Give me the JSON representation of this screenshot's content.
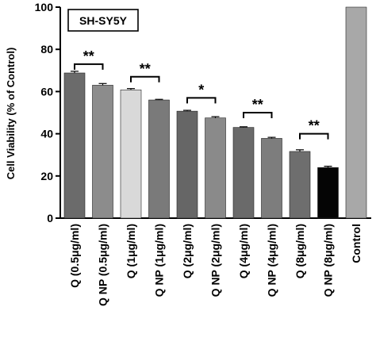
{
  "chart_data": {
    "type": "bar",
    "title": "SH-SY5Y",
    "ylabel": "Cell Viability (% of Control)",
    "xlabel": "",
    "ylim": [
      0,
      100
    ],
    "yticks": [
      0,
      20,
      40,
      60,
      80,
      100
    ],
    "categories": [
      "Q (0.5μg/ml)",
      "Q NP (0.5μg/ml)",
      "Q (1μg/ml)",
      "Q NP (1μg/ml)",
      "Q (2μg/ml)",
      "Q NP (2μg/ml)",
      "Q (4μg/ml)",
      "Q NP (4μg/ml)",
      "Q (8μg/ml)",
      "Q NP (8μg/ml)",
      "Control"
    ],
    "values": [
      68.8,
      63.0,
      60.8,
      56.0,
      50.7,
      47.5,
      43.0,
      37.8,
      31.6,
      24.0,
      100
    ],
    "errors": [
      0.8,
      0.8,
      0.6,
      0.3,
      0.4,
      0.6,
      0.3,
      0.5,
      0.8,
      0.6,
      0
    ],
    "colors": [
      "#6b6b6b",
      "#8c8c8c",
      "#d9d9d9",
      "#7a7a7a",
      "#666666",
      "#8a8a8a",
      "#6a6a6a",
      "#7d7d7d",
      "#6e6e6e",
      "#050505",
      "#a8a8a8"
    ],
    "annotations": [
      {
        "pair": [
          0,
          1
        ],
        "y": 73,
        "label": "**"
      },
      {
        "pair": [
          2,
          3
        ],
        "y": 67,
        "label": "**"
      },
      {
        "pair": [
          4,
          5
        ],
        "y": 57,
        "label": "*"
      },
      {
        "pair": [
          6,
          7
        ],
        "y": 50,
        "label": "**"
      },
      {
        "pair": [
          8,
          9
        ],
        "y": 40,
        "label": "**"
      }
    ],
    "grid": false
  }
}
